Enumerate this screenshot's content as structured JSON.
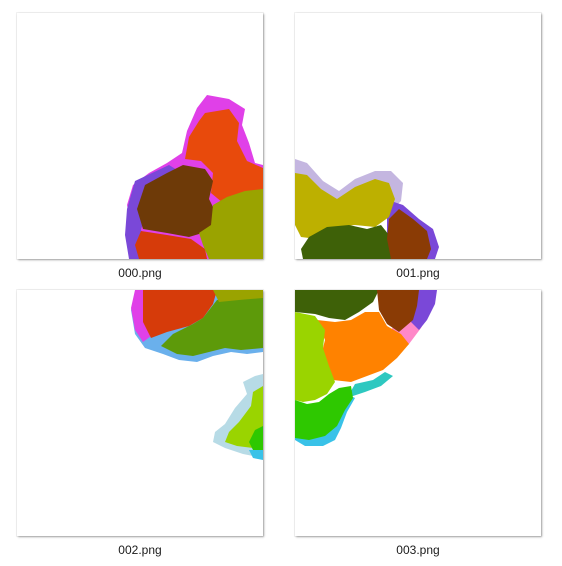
{
  "files": [
    {
      "name": "000.png"
    },
    {
      "name": "001.png"
    },
    {
      "name": "002.png"
    },
    {
      "name": "003.png"
    }
  ],
  "colors": {
    "magenta": "#e040e8",
    "purple": "#7a48d8",
    "orange_red": "#e84a0c",
    "brown": "#6e3a08",
    "red": "#d63b0a",
    "olive": "#9aa300",
    "lavender": "#c4b6e0",
    "mustard": "#bdb000",
    "dark_green": "#3e6108",
    "rust": "#8a3b05",
    "leaf_green": "#5d9a0a",
    "sky_blue": "#6ab0ec",
    "light_blue": "#b7dbe6",
    "lime": "#9ad400",
    "bright_green": "#2ec800",
    "orange": "#ff8200",
    "pink": "#ff88c8",
    "teal": "#2ec8c0",
    "cyan": "#39c2e8"
  }
}
